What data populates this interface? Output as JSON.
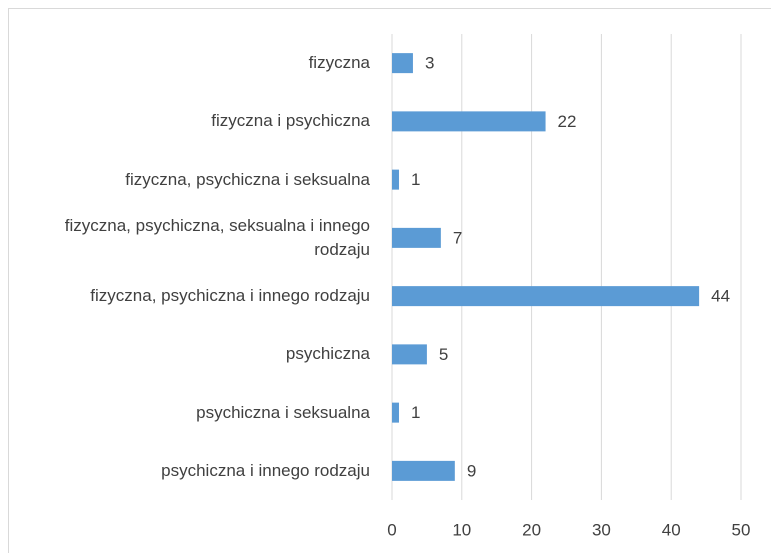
{
  "chart_data": {
    "type": "bar",
    "orientation": "horizontal",
    "categories": [
      "fizyczna",
      "fizyczna i psychiczna",
      "fizyczna, psychiczna i seksualna",
      "fizyczna, psychiczna, seksualna i innego rodzaju",
      "fizyczna, psychiczna i innego rodzaju",
      "psychiczna",
      "psychiczna i seksualna",
      "psychiczna i innego rodzaju"
    ],
    "values": [
      3,
      22,
      1,
      7,
      44,
      5,
      1,
      9
    ],
    "color": "#5b9bd5",
    "xlim": [
      0,
      50
    ],
    "xticks": [
      0,
      10,
      20,
      30,
      40,
      50
    ],
    "grid": true
  }
}
